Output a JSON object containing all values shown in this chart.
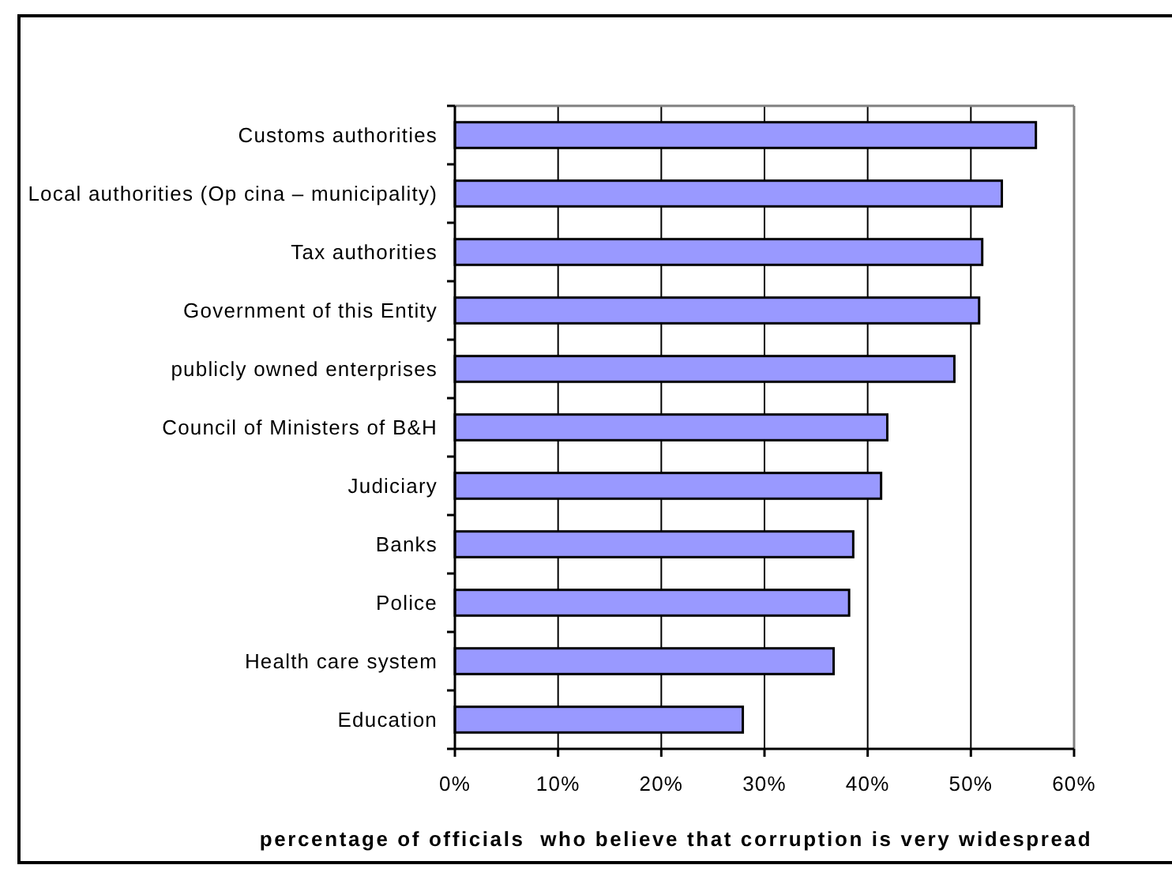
{
  "chart_data": {
    "type": "bar",
    "orientation": "horizontal",
    "categories": [
      "Customs authorities",
      "Local authorities (Op cina – municipality)",
      "Tax authorities",
      "Government of this Entity",
      "publicly owned enterprises",
      "Council of Ministers of B&H",
      "Judiciary",
      "Banks",
      "Police",
      "Health care system",
      "Education"
    ],
    "values": [
      56.3,
      53.0,
      51.1,
      50.8,
      48.4,
      41.9,
      41.3,
      38.6,
      38.2,
      36.7,
      27.9
    ],
    "color": "#9999ff",
    "xlim": [
      0,
      60
    ],
    "xticks": [
      {
        "value": 0,
        "label": "0%"
      },
      {
        "value": 10,
        "label": "10%"
      },
      {
        "value": 20,
        "label": "20%"
      },
      {
        "value": 30,
        "label": "30%"
      },
      {
        "value": 40,
        "label": "40%"
      },
      {
        "value": 50,
        "label": "50%"
      },
      {
        "value": 60,
        "label": "60%"
      }
    ],
    "xlabel": "percentage of officials  who believe that corruption is very widespread",
    "grid": "x"
  }
}
